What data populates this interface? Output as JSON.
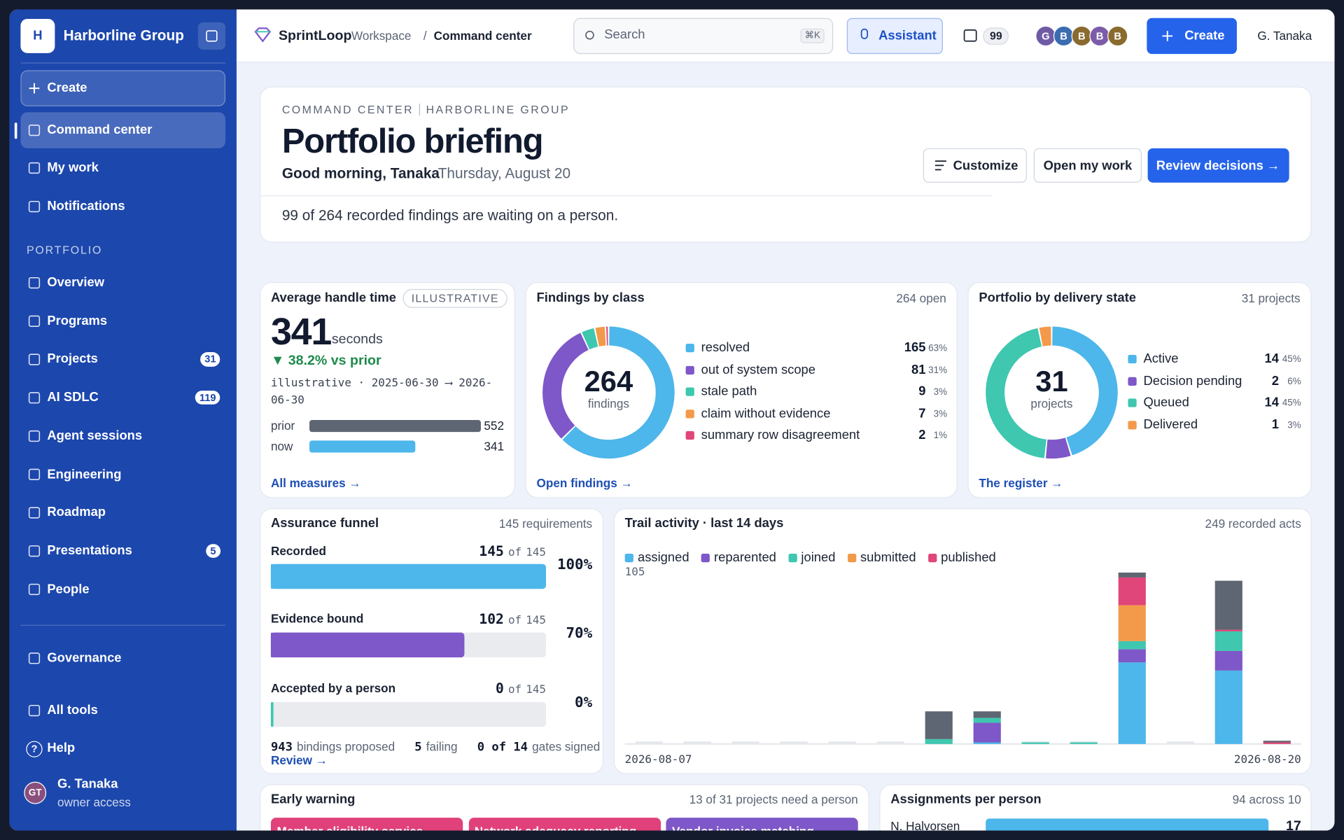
{
  "sidebar": {
    "org_initial": "H",
    "org": "Harborline Group",
    "create": "Create",
    "nav": [
      "Command center",
      "My work",
      "Notifications"
    ],
    "section": "PORTFOLIO",
    "portfolio": [
      {
        "label": "Overview"
      },
      {
        "label": "Programs"
      },
      {
        "label": "Projects",
        "badge": 31
      },
      {
        "label": "AI SDLC",
        "badge": 119
      },
      {
        "label": "Agent sessions"
      },
      {
        "label": "Engineering"
      },
      {
        "label": "Roadmap"
      },
      {
        "label": "Presentations",
        "badge": 5
      },
      {
        "label": "People"
      }
    ],
    "footer": [
      "Governance",
      "All tools",
      "Help"
    ],
    "help_icon": "?",
    "user": {
      "initials": "GT",
      "name": "G. Tanaka",
      "role": "owner access"
    }
  },
  "topbar": {
    "brand": "SprintLoop",
    "workspace": "Workspace",
    "separator": "/",
    "page": "Command center",
    "search": "Search",
    "shortcut": "⌘K",
    "assistant": "Assistant",
    "inbox": 99,
    "avatars": [
      "G",
      "B",
      "B",
      "B",
      "B"
    ],
    "avatar_colors": [
      "#6f5aa6",
      "#3b6cb0",
      "#8a6a2f",
      "#7c5ca8",
      "#8a6a2f"
    ],
    "create": "Create",
    "user": "G. Tanaka"
  },
  "briefing": {
    "eyebrow": [
      "COMMAND CENTER",
      "HARBORLINE GROUP"
    ],
    "title": "Portfolio briefing",
    "greeting": "Good morning, Tanaka",
    "separator": "·",
    "date": "Thursday, August 20",
    "summary": "99 of 264 recorded findings are waiting on a person.",
    "actions": [
      "Customize",
      "Open my work",
      "Review decisions →"
    ]
  },
  "chart_data": [
    {
      "type": "kpi_bar",
      "title": "Average handle time",
      "tag": "ILLUSTRATIVE",
      "value": 341,
      "unit": "seconds",
      "delta": "▼ 38.2% vs prior",
      "range": "illustrative · 2025-06-30 ⟶ 2026-06-30",
      "categories": [
        "prior",
        "now"
      ],
      "values": [
        552,
        341
      ],
      "colors": [
        "#5f6673",
        "#4db6ea"
      ],
      "link": "All measures →"
    },
    {
      "type": "donut",
      "title": "Findings by class",
      "subtitle": "264 open",
      "center_value": 264,
      "center_label": "findings",
      "categories": [
        "resolved",
        "out of system scope",
        "stale path",
        "claim without evidence",
        "summary row disagreement"
      ],
      "values": [
        165,
        81,
        9,
        7,
        2
      ],
      "shares": [
        "63%",
        "31%",
        "3%",
        "3%",
        "1%"
      ],
      "colors": [
        "#4db6ea",
        "#7e57c8",
        "#3fc7b0",
        "#f39a4a",
        "#e04679"
      ],
      "link": "Open findings →"
    },
    {
      "type": "donut",
      "title": "Portfolio by delivery state",
      "subtitle": "31 projects",
      "center_value": 31,
      "center_label": "projects",
      "categories": [
        "Active",
        "Decision pending",
        "Queued",
        "Delivered"
      ],
      "values": [
        14,
        2,
        14,
        1
      ],
      "shares": [
        "45%",
        "6%",
        "45%",
        "3%"
      ],
      "colors": [
        "#4db6ea",
        "#7e57c8",
        "#3fc7b0",
        "#f39a4a"
      ],
      "link": "The register →"
    },
    {
      "type": "funnel",
      "title": "Assurance funnel",
      "subtitle": "145 requirements",
      "categories": [
        "Recorded",
        "Evidence bound",
        "Accepted by a person"
      ],
      "values": [
        145,
        102,
        0
      ],
      "of": "of",
      "total": 145,
      "shares": [
        "100%",
        "70%",
        "0%"
      ],
      "colors": [
        "#4db6ea",
        "#7e57c8",
        "#3fc7b0"
      ],
      "footer": [
        {
          "value": 943,
          "text": "bindings proposed"
        },
        {
          "value": 5,
          "text": "failing"
        },
        {
          "value": "0 of 14",
          "text": "gates signed"
        }
      ],
      "link": "Review →"
    },
    {
      "type": "stacked_bar",
      "title": "Trail activity · last 14 days",
      "subtitle": "249 recorded acts",
      "categories": [
        "2026-08-07",
        null,
        null,
        null,
        null,
        null,
        null,
        null,
        null,
        null,
        null,
        null,
        null,
        "2026-08-20"
      ],
      "ylim": [
        0,
        105
      ],
      "yticks": [
        105
      ],
      "series": [
        {
          "name": "assigned",
          "color": "#4db6ea",
          "values": [
            0,
            0,
            0,
            0,
            0,
            0,
            0,
            1,
            0,
            0,
            50,
            0,
            45,
            0
          ]
        },
        {
          "name": "reparented",
          "color": "#7e57c8",
          "values": [
            0,
            0,
            0,
            0,
            0,
            0,
            0,
            12,
            0,
            0,
            8,
            0,
            12,
            0
          ]
        },
        {
          "name": "joined",
          "color": "#3fc7b0",
          "values": [
            0,
            0,
            0,
            0,
            0,
            0,
            3,
            3,
            1,
            1,
            5,
            0,
            12,
            0
          ]
        },
        {
          "name": "submitted",
          "color": "#f39a4a",
          "values": [
            0,
            0,
            0,
            0,
            0,
            0,
            0,
            0,
            0,
            0,
            22,
            0,
            0,
            0
          ]
        },
        {
          "name": "published",
          "color": "#e04679",
          "values": [
            0,
            0,
            0,
            0,
            0,
            0,
            0,
            0,
            0,
            0,
            17,
            0,
            1,
            1
          ]
        },
        {
          "name": null,
          "color": "#5f6673",
          "values": [
            0,
            0,
            0,
            0,
            0,
            0,
            17,
            4,
            0,
            0,
            3,
            0,
            30,
            1
          ]
        }
      ]
    },
    {
      "type": "hbar",
      "title": "Assignments per person",
      "subtitle": "94 across 10",
      "categories": [
        "N. Halvorsen"
      ],
      "values": [
        17
      ],
      "color": "#4db6ea"
    }
  ],
  "early_warning": {
    "title": "Early warning",
    "subtitle": "13 of 31 projects need a person",
    "items": [
      "Member eligibility service",
      "Network adequacy reporting",
      "Vendor invoice matching"
    ],
    "item_colors": [
      "#e0417a",
      "#e0417a",
      "#7e57c8"
    ]
  }
}
